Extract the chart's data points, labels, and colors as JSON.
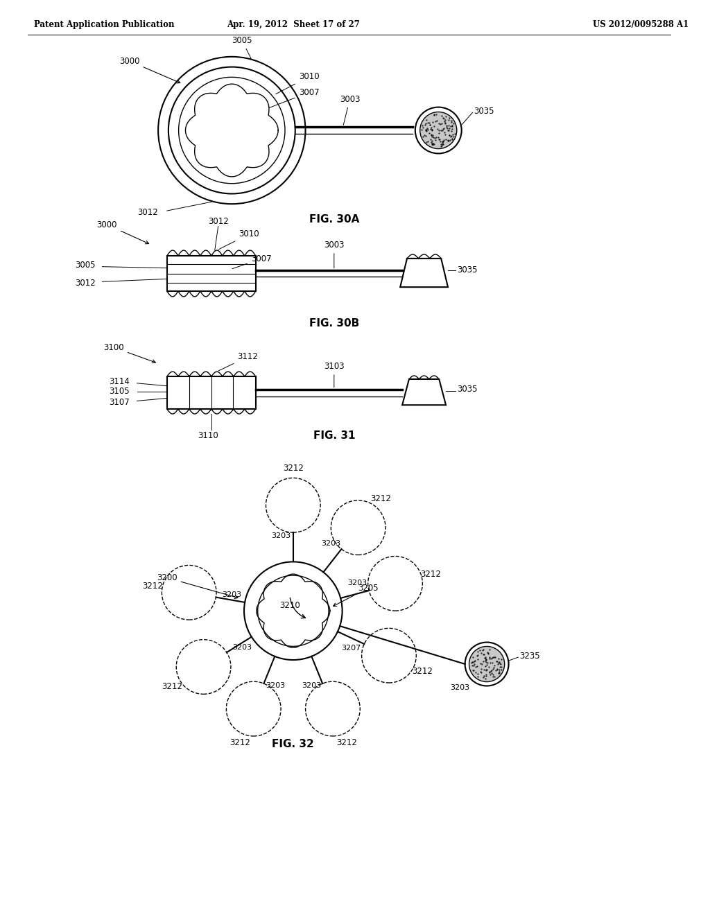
{
  "bg_color": "#ffffff",
  "text_color": "#000000",
  "header_left": "Patent Application Publication",
  "header_center": "Apr. 19, 2012  Sheet 17 of 27",
  "header_right": "US 2012/0095288 A1",
  "fig30a_label": "FIG. 30A",
  "fig30b_label": "FIG. 30B",
  "fig31_label": "FIG. 31",
  "fig32_label": "FIG. 32"
}
